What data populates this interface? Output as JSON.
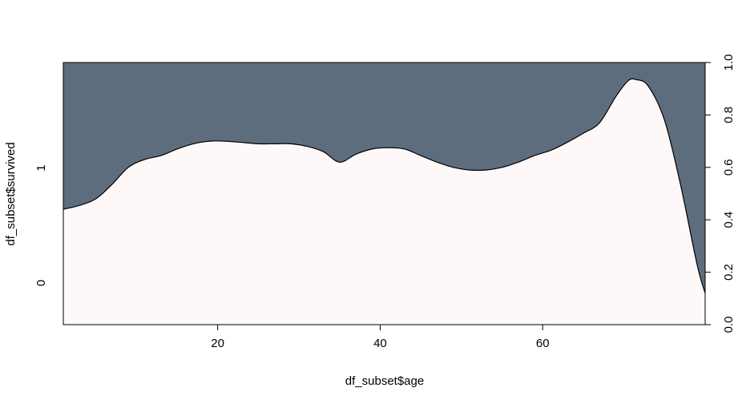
{
  "chart_data": {
    "type": "area",
    "subtype": "conditional-density",
    "title": "",
    "xlabel": "df_subset$age",
    "ylabel": "df_subset$survived",
    "xlim": [
      1,
      80
    ],
    "x_ticks": [
      20,
      40,
      60
    ],
    "x_tick_labels": [
      "20",
      "40",
      "60"
    ],
    "y_right_lim": [
      0,
      1
    ],
    "y_right_ticks": [
      0,
      0.2,
      0.4,
      0.6,
      0.8,
      1
    ],
    "y_right_tick_labels": [
      "0.0",
      "0.2",
      "0.4",
      "0.6",
      "0.8",
      "1.0"
    ],
    "y_left_category_labels": [
      "0",
      "1"
    ],
    "grid": false,
    "legend": "none",
    "series": [
      {
        "category": "0",
        "color": "#fff8f8",
        "x": [
          1,
          3,
          5,
          7,
          9,
          11,
          13,
          15,
          17,
          19,
          21,
          23,
          25,
          27,
          29,
          31,
          33,
          35,
          37,
          39,
          41,
          43,
          45,
          47,
          49,
          51,
          53,
          55,
          57,
          59,
          61,
          63,
          65,
          67,
          69,
          70.5,
          71.5,
          73,
          75,
          77,
          79,
          80
        ],
        "y": [
          0.44,
          0.455,
          0.48,
          0.535,
          0.6,
          0.63,
          0.645,
          0.67,
          0.69,
          0.7,
          0.7,
          0.695,
          0.69,
          0.69,
          0.69,
          0.68,
          0.66,
          0.62,
          0.65,
          0.67,
          0.675,
          0.67,
          0.645,
          0.62,
          0.6,
          0.59,
          0.59,
          0.6,
          0.62,
          0.645,
          0.665,
          0.695,
          0.73,
          0.77,
          0.87,
          0.93,
          0.935,
          0.91,
          0.78,
          0.53,
          0.23,
          0.12
        ]
      },
      {
        "category": "1",
        "color": "#5e6d7e"
      }
    ]
  }
}
